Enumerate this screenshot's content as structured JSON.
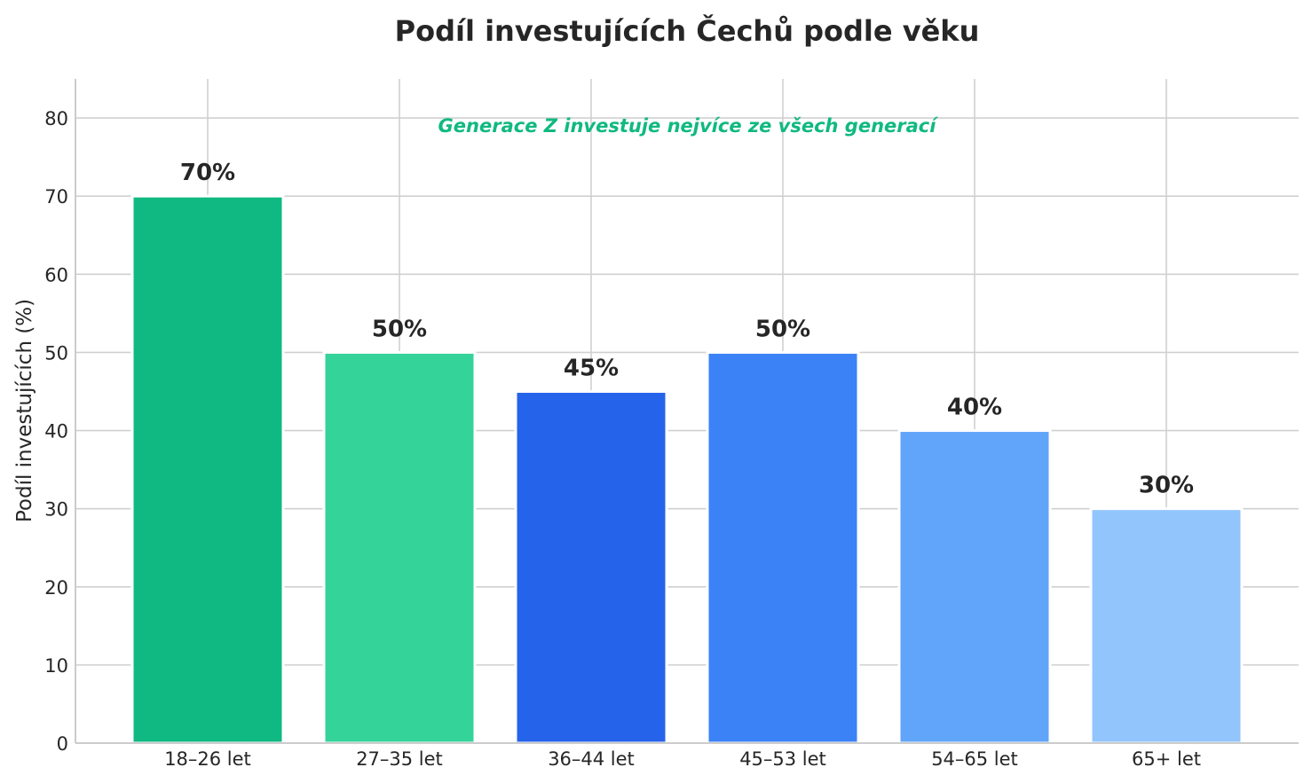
{
  "chart_data": {
    "type": "bar",
    "title": "Podíl investujících Čechů podle věku",
    "xlabel": "",
    "ylabel": "Podíl investujících (%)",
    "categories": [
      "18–26 let",
      "27–35 let",
      "36–44 let",
      "45–53 let",
      "54–65 let",
      "65+ let"
    ],
    "values": [
      70,
      50,
      45,
      50,
      40,
      30
    ],
    "value_labels": [
      "70%",
      "50%",
      "45%",
      "50%",
      "40%",
      "30%"
    ],
    "colors": [
      "#10b981",
      "#34d399",
      "#2563eb",
      "#3b82f6",
      "#60a5fa",
      "#93c5fd"
    ],
    "ylim": [
      0,
      85
    ],
    "yticks": [
      "0",
      "10",
      "20",
      "30",
      "40",
      "50",
      "60",
      "70",
      "80"
    ],
    "grid": true,
    "annotation": {
      "text": "Generace Z investuje nejvíce ze všech generací",
      "color": "#10b981"
    }
  }
}
